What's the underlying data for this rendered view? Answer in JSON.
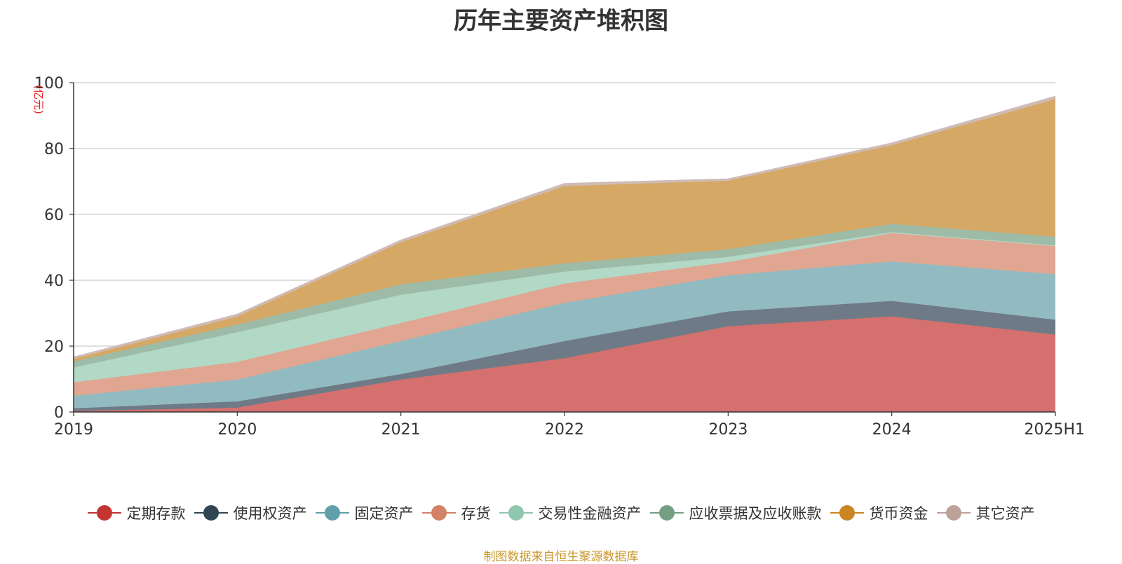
{
  "title": "历年主要资产堆积图",
  "source_note": "制图数据来自恒生聚源数据库",
  "chart_data": {
    "type": "area",
    "stacked": true,
    "title": "历年主要资产堆积图",
    "ylabel": "(亿元)",
    "xlabel": "",
    "ylim": [
      0,
      100
    ],
    "yticks": [
      0,
      20,
      40,
      60,
      80,
      100
    ],
    "grid": true,
    "legend_position": "bottom",
    "categories": [
      "2019",
      "2020",
      "2021",
      "2022",
      "2023",
      "2024",
      "2025H1"
    ],
    "series": [
      {
        "name": "定期存款",
        "color": "#c23531",
        "fill": "#d4716e",
        "values": [
          0.3,
          1.3,
          9.8,
          16.3,
          26.0,
          29.0,
          23.5
        ]
      },
      {
        "name": "使用权资产",
        "color": "#2f4554",
        "fill": "#6e7b86",
        "values": [
          0.8,
          1.9,
          1.7,
          5.2,
          4.5,
          4.7,
          4.5
        ]
      },
      {
        "name": "固定资产",
        "color": "#61a0a8",
        "fill": "#92bbc1",
        "values": [
          3.8,
          6.6,
          10.0,
          11.6,
          11.0,
          12.0,
          13.8
        ]
      },
      {
        "name": "存货",
        "color": "#d48265",
        "fill": "#e0a692",
        "values": [
          4.1,
          5.4,
          5.5,
          5.9,
          4.0,
          8.6,
          8.6
        ]
      },
      {
        "name": "交易性金融资产",
        "color": "#91c7ae",
        "fill": "#b2d8c6",
        "values": [
          4.5,
          9.0,
          8.6,
          3.6,
          1.6,
          0.3,
          0.2
        ]
      },
      {
        "name": "应收票据及应收账款",
        "color": "#749f83",
        "fill": "#9dbba7",
        "values": [
          1.8,
          2.3,
          3.1,
          2.5,
          2.3,
          2.5,
          2.6
        ]
      },
      {
        "name": "货币资金",
        "color": "#ca8622",
        "fill": "#d6a865",
        "values": [
          0.8,
          2.5,
          12.8,
          23.5,
          20.8,
          23.9,
          41.8
        ]
      },
      {
        "name": "其它资产",
        "color": "#bda29a",
        "fill": "#cfbbb6",
        "values": [
          0.5,
          0.6,
          0.6,
          0.7,
          0.5,
          0.6,
          0.8
        ]
      }
    ]
  }
}
